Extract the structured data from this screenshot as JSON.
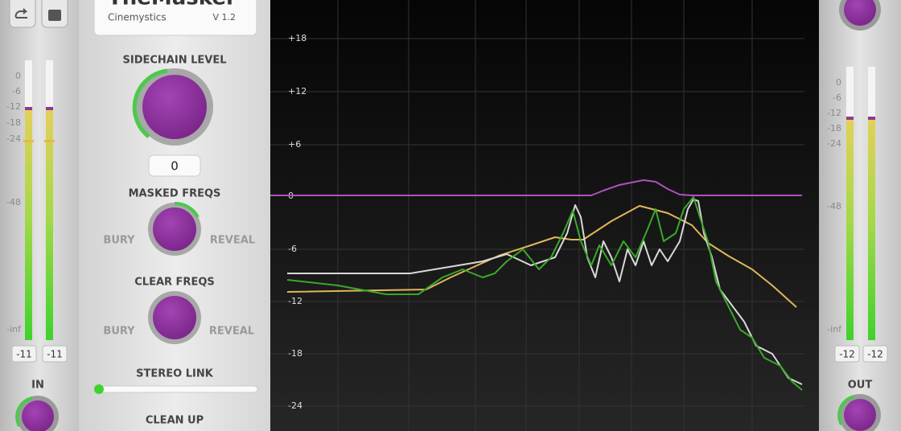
{
  "app": {
    "title": "TheMasker",
    "vendor": "Cinemystics",
    "version": "V 1.2"
  },
  "controls": {
    "sidechain_level": {
      "label": "SIDECHAIN LEVEL",
      "value": 0
    },
    "masked_freqs": {
      "label": "MASKED FREQS",
      "left": "BURY",
      "right": "REVEAL"
    },
    "clear_freqs": {
      "label": "CLEAR FREQS",
      "left": "BURY",
      "right": "REVEAL"
    },
    "stereo_link": {
      "label": "STEREO LINK"
    },
    "clean_up": {
      "label": "CLEAN UP"
    }
  },
  "input_meter": {
    "label": "IN",
    "scale": [
      "0",
      "-6",
      "-12",
      "-18",
      "-24",
      "-48",
      "-inf"
    ],
    "readouts": [
      -11,
      -11
    ]
  },
  "output_meter": {
    "label": "OUT",
    "scale": [
      "0",
      "-6",
      "-12",
      "-18",
      "-24",
      "-48",
      "-inf"
    ],
    "readouts": [
      -12,
      -12
    ]
  },
  "spectrum": {
    "axis_labels": [
      "+18",
      "+12",
      "+6",
      "0",
      "-6",
      "-12",
      "-18",
      "-24"
    ]
  }
}
